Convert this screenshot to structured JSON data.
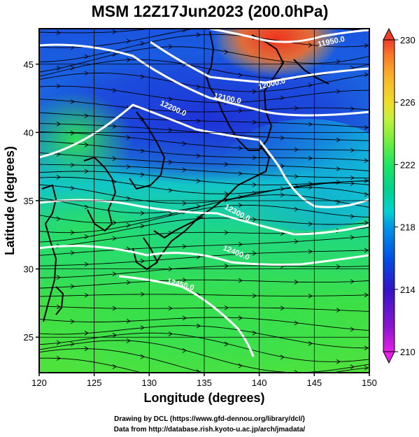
{
  "chart_data": {
    "type": "heatmap",
    "title": "MSM 12Z17Jun2023 (200.0hPa)",
    "xlabel": "Longitude (degrees)",
    "ylabel": "Latitude  (degrees)",
    "xlim": [
      120,
      150
    ],
    "ylim": [
      22.4,
      47.6
    ],
    "x_ticks": [
      120,
      125,
      130,
      135,
      140,
      145,
      150
    ],
    "y_ticks": [
      25,
      30,
      35,
      40,
      45
    ],
    "grid": true,
    "colorbar": {
      "orientation": "vertical",
      "placement": "right",
      "range": [
        210,
        230
      ],
      "ticks": [
        210,
        214,
        218,
        222,
        226,
        230
      ],
      "colors": [
        "#e61ee6",
        "#8c14d2",
        "#3214c8",
        "#0050e6",
        "#0096e6",
        "#00d2d2",
        "#00d28c",
        "#1ee664",
        "#78f03c",
        "#c8f03c",
        "#f0dc28",
        "#fab428",
        "#fa7828",
        "#f03c28"
      ]
    },
    "height_contours": [
      {
        "label": "12000.0"
      },
      {
        "label": "12100.0"
      },
      {
        "label": "12200.0"
      },
      {
        "label": "12300.0"
      },
      {
        "label": "12400.0"
      },
      {
        "label": "12450.0"
      },
      {
        "label": "11950.0"
      }
    ],
    "field_description": "temperature shading with streamlines and white geopotential height contours",
    "credits": {
      "line1": "Drawing by DCL (https://www.gfd-dennou.org/library/dcl/)",
      "line2": "Data from http://database.rish.kyoto-u.ac.jp/arch/jmadata/"
    }
  }
}
